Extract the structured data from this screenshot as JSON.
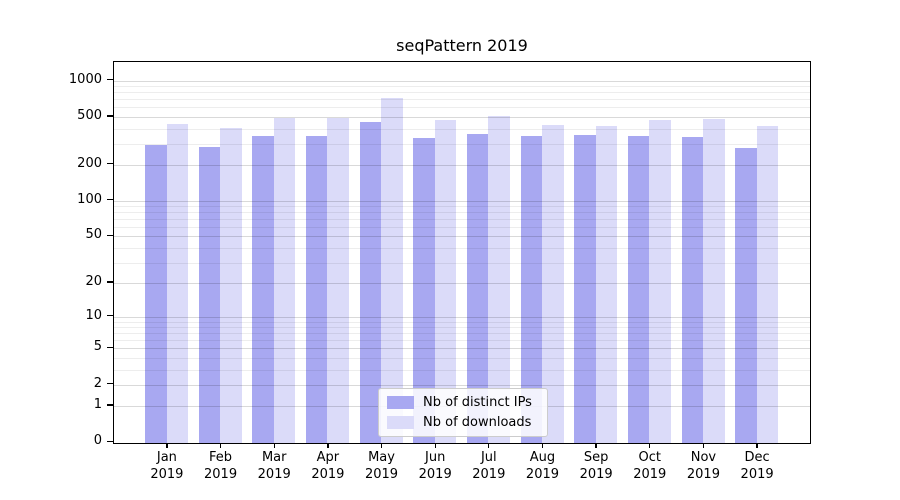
{
  "chart_data": {
    "type": "bar",
    "title": "seqPattern 2019",
    "categories": [
      "Jan 2019",
      "Feb 2019",
      "Mar 2019",
      "Apr 2019",
      "May 2019",
      "Jun 2019",
      "Jul 2019",
      "Aug 2019",
      "Sep 2019",
      "Oct 2019",
      "Nov 2019",
      "Dec 2019"
    ],
    "series": [
      {
        "name": "Nb of distinct IPs",
        "color": "#a8a8f1",
        "values": [
          295,
          285,
          350,
          350,
          465,
          340,
          365,
          350,
          360,
          350,
          345,
          280
        ]
      },
      {
        "name": "Nb of downloads",
        "color": "#dbdbf9",
        "values": [
          440,
          410,
          500,
          500,
          730,
          475,
          515,
          435,
          430,
          475,
          485,
          425
        ]
      }
    ],
    "xlabel": "",
    "ylabel": "",
    "yscale": "log1p",
    "ylim": [
      0,
      1430
    ],
    "yticks": [
      0,
      1,
      2,
      5,
      10,
      20,
      50,
      100,
      200,
      500,
      1000
    ],
    "minor_gridlines": [
      3,
      4,
      6,
      7,
      8,
      9,
      30,
      40,
      60,
      70,
      80,
      90,
      300,
      400,
      600,
      700,
      800,
      900
    ],
    "grid": true,
    "legend_position": "lower center",
    "background": "#ffffff",
    "major_grid_color": "rgba(0,0,0,0.15)",
    "minor_grid_color": "rgba(0,0,0,0.07)"
  }
}
